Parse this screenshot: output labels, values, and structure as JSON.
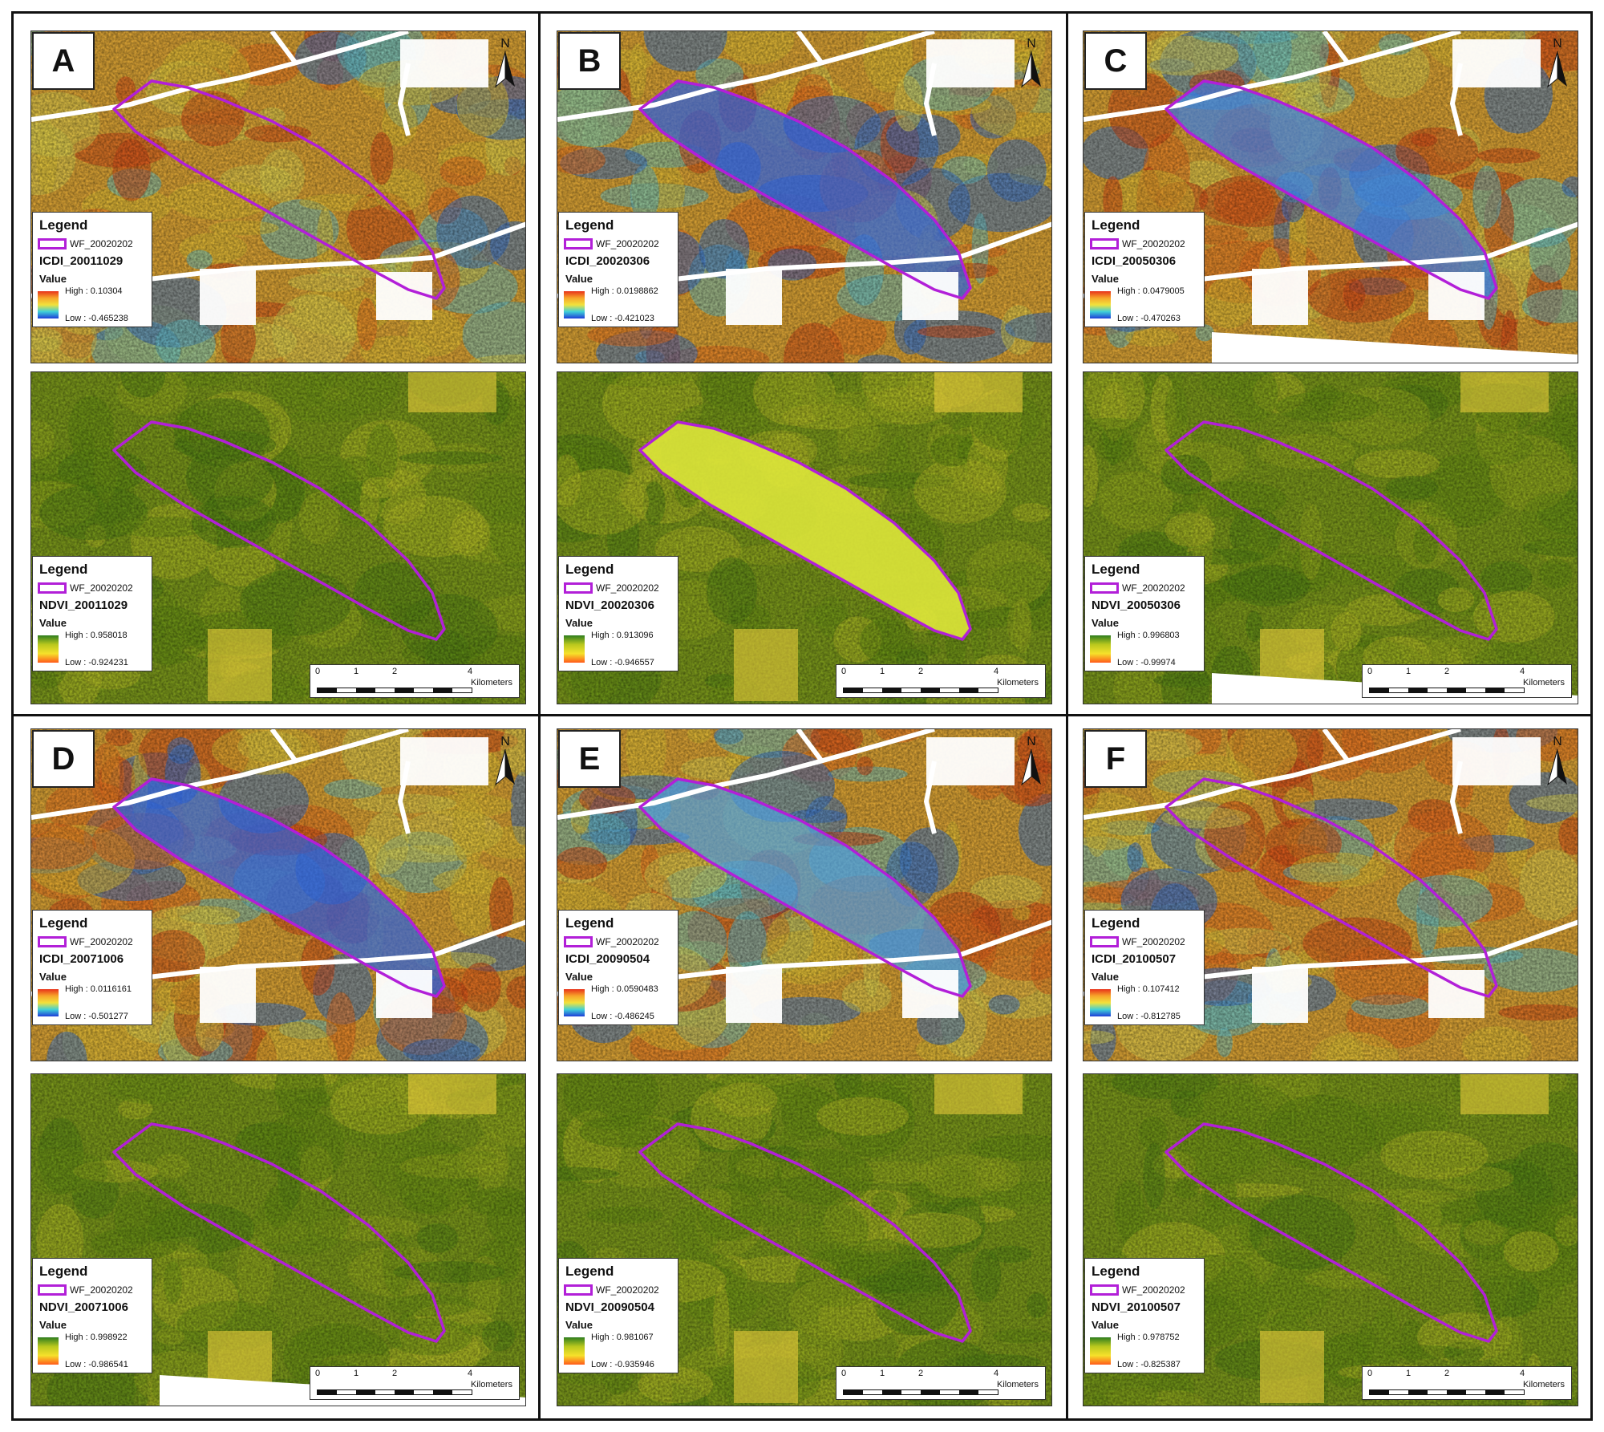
{
  "panels": [
    {
      "letter": "A",
      "icdi": {
        "layer": "ICDI_20011029",
        "high": "High : 0.10304",
        "low": "Low : -0.465238"
      },
      "ndvi": {
        "layer": "NDVI_20011029",
        "high": "High : 0.958018",
        "low": "Low : -0.924231"
      }
    },
    {
      "letter": "B",
      "icdi": {
        "layer": "ICDI_20020306",
        "high": "High : 0.0198862",
        "low": "Low : -0.421023"
      },
      "ndvi": {
        "layer": "NDVI_20020306",
        "high": "High : 0.913096",
        "low": "Low : -0.946557"
      }
    },
    {
      "letter": "C",
      "icdi": {
        "layer": "ICDI_20050306",
        "high": "High : 0.0479005",
        "low": "Low : -0.470263"
      },
      "ndvi": {
        "layer": "NDVI_20050306",
        "high": "High : 0.996803",
        "low": "Low : -0.99974"
      }
    },
    {
      "letter": "D",
      "icdi": {
        "layer": "ICDI_20071006",
        "high": "High : 0.0116161",
        "low": "Low : -0.501277"
      },
      "ndvi": {
        "layer": "NDVI_20071006",
        "high": "High : 0.998922",
        "low": "Low : -0.986541"
      }
    },
    {
      "letter": "E",
      "icdi": {
        "layer": "ICDI_20090504",
        "high": "High : 0.0590483",
        "low": "Low : -0.486245"
      },
      "ndvi": {
        "layer": "NDVI_20090504",
        "high": "High : 0.981067",
        "low": "Low : -0.935946"
      }
    },
    {
      "letter": "F",
      "icdi": {
        "layer": "ICDI_20100507",
        "high": "High : 0.107412",
        "low": "Low : -0.812785"
      },
      "ndvi": {
        "layer": "NDVI_20100507",
        "high": "High : 0.978752",
        "low": "Low : -0.825387"
      }
    }
  ],
  "legend": {
    "title": "Legend",
    "fire_layer": "WF_20020202",
    "value_label": "Value"
  },
  "north": "N",
  "scalebar": {
    "ticks": [
      "0",
      "1",
      "2",
      "4"
    ],
    "unit": "Kilometers"
  },
  "colors": {
    "fire_outline": "#b21fd8",
    "icdi_high": "#e8321a",
    "icdi_mid": "#f2e23c",
    "icdi_low": "#1e3cd8",
    "ndvi_high": "#2e7d1e",
    "ndvi_mid": "#b9c81e",
    "ndvi_low": "#ff5a1a"
  }
}
